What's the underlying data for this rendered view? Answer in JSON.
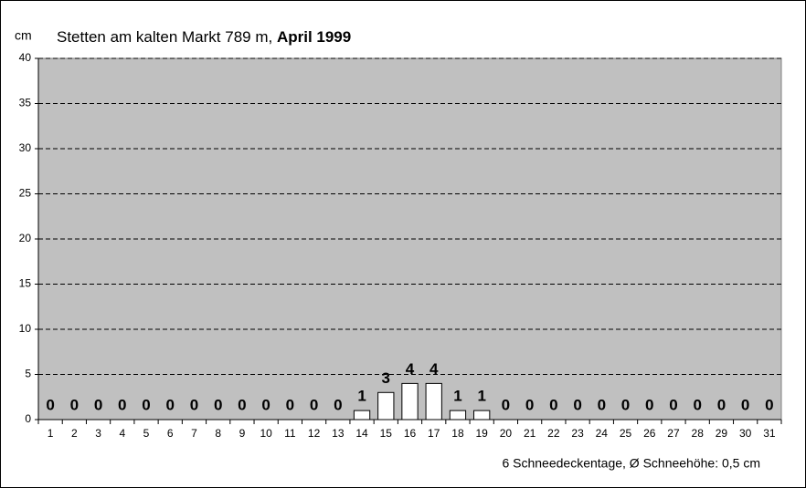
{
  "chart_data": {
    "type": "bar",
    "title": "Stetten am kalten Markt 789 m,",
    "subtitle": "April 1999",
    "y_label": "cm",
    "note": "6 Schneedeckentage, Ø Schneehöhe:  0,5 cm",
    "categories": [
      "1",
      "2",
      "3",
      "4",
      "5",
      "6",
      "7",
      "8",
      "9",
      "10",
      "11",
      "12",
      "13",
      "14",
      "15",
      "16",
      "17",
      "18",
      "19",
      "20",
      "21",
      "22",
      "23",
      "24",
      "25",
      "26",
      "27",
      "28",
      "29",
      "30",
      "31"
    ],
    "values": [
      0,
      0,
      0,
      0,
      0,
      0,
      0,
      0,
      0,
      0,
      0,
      0,
      0,
      1,
      3,
      4,
      4,
      1,
      1,
      0,
      0,
      0,
      0,
      0,
      0,
      0,
      0,
      0,
      0,
      0,
      0
    ],
    "color": "#ffffff",
    "plot_color": "#c0c0c0",
    "ylim": [
      0,
      40
    ],
    "yticks": [
      0,
      5,
      10,
      15,
      20,
      25,
      30,
      35,
      40
    ],
    "grid": true
  }
}
